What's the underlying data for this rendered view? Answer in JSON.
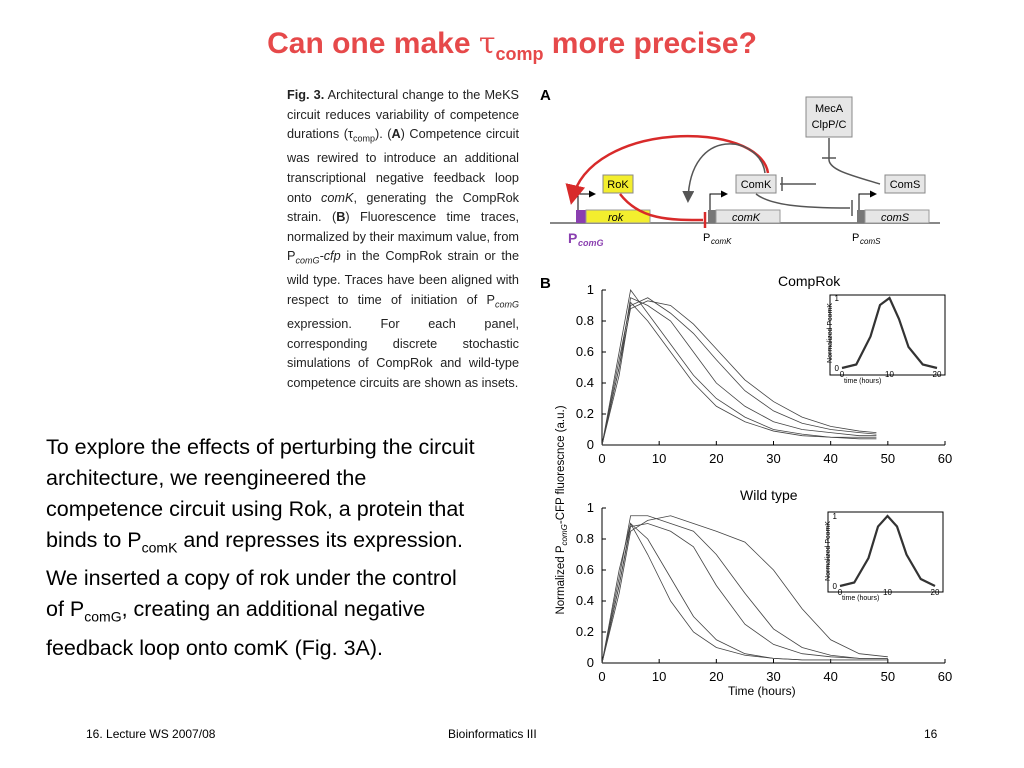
{
  "slide": {
    "title_prefix": "Can one make ",
    "title_tau": "τ",
    "title_sub": "comp",
    "title_suffix": " more precise?"
  },
  "caption": {
    "label": "Fig. 3.",
    "part1": " Architectural change to the MeKS circuit reduces variability of competence durations (",
    "tau": "τ",
    "tau_sub": "comp",
    "part2": "). (",
    "a_label": "A",
    "part3": ") Competence circuit was rewired to introduce an additional transcriptional negative feedback loop onto ",
    "comk_italic": "comK",
    "part4": ", generating the CompRok strain. (",
    "b_label": "B",
    "part5": ") Fluorescence time traces, normalized by their maximum value, from P",
    "p_sub": "comG",
    "cfp": "-cfp",
    "part6": " in the CompRok strain or the wild type. Traces have been aligned with respect to time of initiation of P",
    "p_sub2": "comG",
    "part7": " expression. For each panel, corresponding discrete stochastic simulations of CompRok and wild-type competence circuits are shown as insets."
  },
  "body": {
    "t1": "To explore the effects of perturbing the circuit architecture, we reengineered the competence circuit using Rok, a protein that binds to P",
    "t1_sub": "comK",
    "t2": " and represses its expression. We inserted a copy of rok under the control of P",
    "t2_sub": "comG",
    "t3": ", creating an additional negative feedback loop onto comK (Fig. 3A)."
  },
  "footer": {
    "left": "16. Lecture WS 2007/08",
    "center": "Bioinformatics III",
    "right": "16"
  },
  "figure": {
    "panel_a_label": "A",
    "panel_b_label": "B",
    "mecA_line1": "MecA",
    "mecA_line2": "ClpP/C",
    "rok_protein": "RoK",
    "comk_protein": "ComK",
    "coms_protein": "ComS",
    "rok_gene": "rok",
    "comk_gene": "comK",
    "coms_gene": "comS",
    "p_comg_main": "P",
    "p_comg_sub": "comG",
    "p_comk_main": "P",
    "p_comk_sub": "comK",
    "p_coms_main": "P",
    "p_coms_sub": "comS",
    "colors": {
      "title": "#e6494a",
      "red_arrow": "#d82a2a",
      "purple": "#8a3fb0",
      "yellow": "#f3ee2e"
    }
  },
  "chart_data": [
    {
      "type": "line",
      "title": "CompRok",
      "x": [
        0,
        3,
        5,
        8,
        12,
        16,
        20,
        25,
        30,
        35,
        40,
        45,
        48
      ],
      "series": [
        {
          "values": [
            0,
            0.5,
            0.95,
            0.9,
            0.8,
            0.6,
            0.4,
            0.25,
            0.15,
            0.1,
            0.08,
            0.06,
            0.06
          ]
        },
        {
          "values": [
            0,
            0.6,
            1.0,
            0.85,
            0.65,
            0.45,
            0.3,
            0.18,
            0.1,
            0.07,
            0.05,
            0.04,
            0.04
          ]
        },
        {
          "values": [
            0,
            0.45,
            0.9,
            0.95,
            0.85,
            0.72,
            0.55,
            0.35,
            0.22,
            0.14,
            0.1,
            0.08,
            0.07
          ]
        },
        {
          "values": [
            0,
            0.55,
            0.92,
            0.8,
            0.6,
            0.4,
            0.25,
            0.15,
            0.09,
            0.06,
            0.05,
            0.05,
            0.05
          ]
        },
        {
          "values": [
            0,
            0.5,
            0.88,
            0.93,
            0.9,
            0.78,
            0.62,
            0.42,
            0.28,
            0.18,
            0.12,
            0.09,
            0.08
          ]
        }
      ],
      "xlim": [
        0,
        60
      ],
      "ylim": [
        0,
        1
      ],
      "xticks": [
        "0",
        "10",
        "20",
        "30",
        "40",
        "50",
        "60"
      ],
      "yticks": [
        "0",
        "0.2",
        "0.4",
        "0.6",
        "0.8",
        "1"
      ],
      "inset": {
        "ylabel": "Normalized PcomK",
        "xlabel": "time (hours)",
        "xticks": [
          "0",
          "10",
          "20"
        ],
        "yticks": [
          "0",
          "1"
        ],
        "x": [
          0,
          3,
          6,
          8,
          10,
          12,
          14,
          17,
          20
        ],
        "values": [
          0,
          0.05,
          0.45,
          0.9,
          1.0,
          0.7,
          0.3,
          0.05,
          0
        ]
      }
    },
    {
      "type": "line",
      "title": "Wild type",
      "x": [
        0,
        3,
        5,
        8,
        12,
        16,
        20,
        25,
        30,
        35,
        40,
        45,
        50
      ],
      "series": [
        {
          "values": [
            0,
            0.5,
            0.9,
            0.8,
            0.55,
            0.3,
            0.15,
            0.06,
            0.03,
            0.02,
            0.02,
            0.02,
            0.02
          ]
        },
        {
          "values": [
            0,
            0.55,
            0.95,
            0.95,
            0.9,
            0.85,
            0.7,
            0.45,
            0.22,
            0.1,
            0.05,
            0.03,
            0.03
          ]
        },
        {
          "values": [
            0,
            0.45,
            0.85,
            0.92,
            0.95,
            0.9,
            0.85,
            0.78,
            0.6,
            0.35,
            0.15,
            0.06,
            0.04
          ]
        },
        {
          "values": [
            0,
            0.6,
            0.9,
            0.7,
            0.4,
            0.2,
            0.1,
            0.05,
            0.03,
            0.02,
            0.02,
            0.02,
            0.02
          ]
        },
        {
          "values": [
            0,
            0.5,
            0.88,
            0.9,
            0.85,
            0.75,
            0.5,
            0.25,
            0.12,
            0.06,
            0.04,
            0.03,
            0.03
          ]
        }
      ],
      "xlim": [
        0,
        60
      ],
      "ylim": [
        0,
        1
      ],
      "xticks": [
        "0",
        "10",
        "20",
        "30",
        "40",
        "50",
        "60"
      ],
      "yticks": [
        "0",
        "0.2",
        "0.4",
        "0.6",
        "0.8",
        "1"
      ],
      "xlabel": "Time (hours)",
      "inset": {
        "ylabel": "Normalized PcomK",
        "xlabel": "time (hours)",
        "xticks": [
          "0",
          "10",
          "20"
        ],
        "yticks": [
          "0",
          "1"
        ],
        "x": [
          0,
          3,
          6,
          8,
          10,
          12,
          14,
          17,
          20
        ],
        "values": [
          0,
          0.05,
          0.4,
          0.85,
          1.0,
          0.85,
          0.45,
          0.1,
          0
        ]
      }
    }
  ],
  "shared_ylabel_main": "Normalized P",
  "shared_ylabel_sub": "comG",
  "shared_ylabel_rest": "-CFP fluorescnce (a.u.)"
}
